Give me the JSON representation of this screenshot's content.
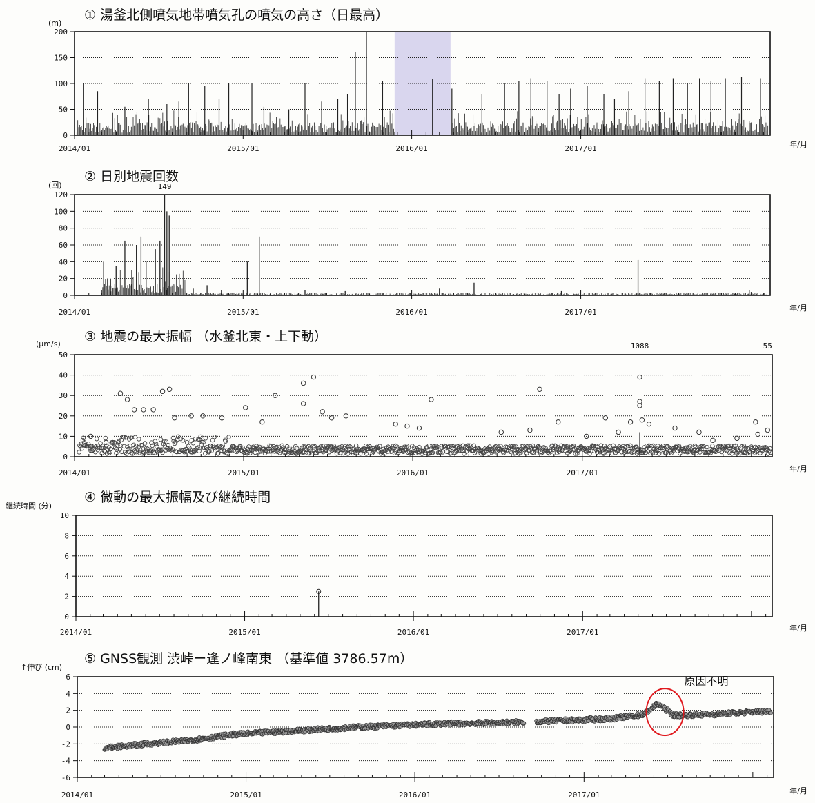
{
  "x_axis_unit": "年/月",
  "colors": {
    "gap_fill": "#d9d6ee",
    "ink": "#222222",
    "annotation": "#e0191e",
    "marker_fill": "#9a9a9a"
  },
  "chart_data": [
    {
      "type": "bar",
      "title": "① 湯釜北側噴気地帯噴気孔の噴気の高さ（日最高）",
      "ylabel": "(m)",
      "ylim": [
        0,
        200
      ],
      "yticks": [
        "200",
        "150",
        "100",
        "50",
        "0"
      ],
      "xlim": [
        "2014-01-01",
        "2018-02-15"
      ],
      "xticks": [
        "2014/01",
        "2015/01",
        "2016/01",
        "2017/01"
      ],
      "xunit": "年/月",
      "no_data_period": [
        "2015-11-25",
        "2016-03-25"
      ],
      "spikes": [
        {
          "date": "2014-01-20",
          "value": 100
        },
        {
          "date": "2014-02-20",
          "value": 85
        },
        {
          "date": "2014-04-20",
          "value": 55
        },
        {
          "date": "2014-06-10",
          "value": 70
        },
        {
          "date": "2014-07-20",
          "value": 60
        },
        {
          "date": "2014-08-15",
          "value": 65
        },
        {
          "date": "2014-09-05",
          "value": 100
        },
        {
          "date": "2014-10-10",
          "value": 95
        },
        {
          "date": "2014-11-10",
          "value": 70
        },
        {
          "date": "2014-12-01",
          "value": 100
        },
        {
          "date": "2015-01-20",
          "value": 100
        },
        {
          "date": "2015-02-15",
          "value": 55
        },
        {
          "date": "2015-04-10",
          "value": 50
        },
        {
          "date": "2015-05-15",
          "value": 100
        },
        {
          "date": "2015-06-20",
          "value": 65
        },
        {
          "date": "2015-07-25",
          "value": 70
        },
        {
          "date": "2015-08-15",
          "value": 80
        },
        {
          "date": "2015-09-01",
          "value": 160
        },
        {
          "date": "2015-09-25",
          "value": 200
        },
        {
          "date": "2015-10-30",
          "value": 105
        },
        {
          "date": "2016-02-15",
          "value": 108
        },
        {
          "date": "2016-03-28",
          "value": 90
        },
        {
          "date": "2016-06-01",
          "value": 80
        },
        {
          "date": "2016-07-20",
          "value": 100
        },
        {
          "date": "2016-08-20",
          "value": 105
        },
        {
          "date": "2016-09-15",
          "value": 110
        },
        {
          "date": "2016-10-20",
          "value": 105
        },
        {
          "date": "2016-11-15",
          "value": 80
        },
        {
          "date": "2016-12-10",
          "value": 90
        },
        {
          "date": "2017-01-15",
          "value": 95
        },
        {
          "date": "2017-02-20",
          "value": 80
        },
        {
          "date": "2017-03-15",
          "value": 70
        },
        {
          "date": "2017-04-15",
          "value": 85
        },
        {
          "date": "2017-05-20",
          "value": 110
        },
        {
          "date": "2017-06-20",
          "value": 105
        },
        {
          "date": "2017-07-20",
          "value": 110
        },
        {
          "date": "2017-08-20",
          "value": 100
        },
        {
          "date": "2017-09-15",
          "value": 110
        },
        {
          "date": "2017-10-10",
          "value": 105
        },
        {
          "date": "2017-11-10",
          "value": 110
        },
        {
          "date": "2017-12-15",
          "value": 112
        },
        {
          "date": "2018-01-25",
          "value": 110
        }
      ]
    },
    {
      "type": "bar",
      "title": "② 日別地震回数",
      "ylabel": "(回)",
      "ylim": [
        0,
        120
      ],
      "yticks": [
        "120",
        "100",
        "80",
        "60",
        "40",
        "20",
        "0"
      ],
      "xlim": [
        "2014-01-01",
        "2018-02-15"
      ],
      "xticks": [
        "2014/01",
        "2015/01",
        "2016/01",
        "2017/01"
      ],
      "xunit": "年/月",
      "over_label": "149",
      "spikes": [
        {
          "date": "2014-03-05",
          "value": 40
        },
        {
          "date": "2014-03-20",
          "value": 20
        },
        {
          "date": "2014-04-01",
          "value": 35
        },
        {
          "date": "2014-04-20",
          "value": 65
        },
        {
          "date": "2014-05-05",
          "value": 30
        },
        {
          "date": "2014-05-15",
          "value": 60
        },
        {
          "date": "2014-05-25",
          "value": 70
        },
        {
          "date": "2014-06-05",
          "value": 40
        },
        {
          "date": "2014-06-25",
          "value": 55
        },
        {
          "date": "2014-07-05",
          "value": 65
        },
        {
          "date": "2014-07-15",
          "value": 120
        },
        {
          "date": "2014-07-20",
          "value": 100
        },
        {
          "date": "2014-07-25",
          "value": 95
        },
        {
          "date": "2014-08-10",
          "value": 25
        },
        {
          "date": "2014-09-15",
          "value": 8
        },
        {
          "date": "2014-10-15",
          "value": 12
        },
        {
          "date": "2014-11-15",
          "value": 6
        },
        {
          "date": "2015-01-10",
          "value": 40
        },
        {
          "date": "2015-02-05",
          "value": 70
        },
        {
          "date": "2015-05-15",
          "value": 6
        },
        {
          "date": "2015-08-10",
          "value": 5
        },
        {
          "date": "2016-03-01",
          "value": 8
        },
        {
          "date": "2016-05-15",
          "value": 15
        },
        {
          "date": "2016-11-20",
          "value": 5
        },
        {
          "date": "2017-05-05",
          "value": 42
        },
        {
          "date": "2018-01-05",
          "value": 4
        }
      ]
    },
    {
      "type": "scatter",
      "title": "③ 地震の最大振幅 （水釜北東・上下動）",
      "ylabel": "(μm/s)",
      "ylim": [
        0,
        50
      ],
      "yticks": [
        "50",
        "40",
        "30",
        "20",
        "10",
        "0"
      ],
      "xlim": [
        "2014-01-01",
        "2018-02-15"
      ],
      "xticks": [
        "2014/01",
        "2015/01",
        "2016/01",
        "2017/01"
      ],
      "xunit": "年/月",
      "over_labels": [
        {
          "date": "2017-05-05",
          "text": "1088"
        },
        {
          "date": "2018-02-05",
          "text": "55"
        }
      ],
      "points": [
        {
          "date": "2014-02-05",
          "value": 10
        },
        {
          "date": "2014-03-10",
          "value": 7
        },
        {
          "date": "2014-04-10",
          "value": 31
        },
        {
          "date": "2014-04-25",
          "value": 28
        },
        {
          "date": "2014-05-10",
          "value": 23
        },
        {
          "date": "2014-05-30",
          "value": 23
        },
        {
          "date": "2014-06-20",
          "value": 23
        },
        {
          "date": "2014-07-10",
          "value": 32
        },
        {
          "date": "2014-07-25",
          "value": 33
        },
        {
          "date": "2014-08-05",
          "value": 19
        },
        {
          "date": "2014-09-10",
          "value": 20
        },
        {
          "date": "2014-10-05",
          "value": 20
        },
        {
          "date": "2014-11-15",
          "value": 19
        },
        {
          "date": "2015-01-05",
          "value": 24
        },
        {
          "date": "2015-02-10",
          "value": 17
        },
        {
          "date": "2015-03-10",
          "value": 30
        },
        {
          "date": "2015-05-10",
          "value": 36
        },
        {
          "date": "2015-05-10",
          "value": 26
        },
        {
          "date": "2015-06-01",
          "value": 39
        },
        {
          "date": "2015-06-20",
          "value": 22
        },
        {
          "date": "2015-07-10",
          "value": 19
        },
        {
          "date": "2015-08-10",
          "value": 20
        },
        {
          "date": "2015-11-25",
          "value": 16
        },
        {
          "date": "2015-12-20",
          "value": 15
        },
        {
          "date": "2016-01-15",
          "value": 14
        },
        {
          "date": "2016-02-10",
          "value": 28
        },
        {
          "date": "2016-07-10",
          "value": 12
        },
        {
          "date": "2016-09-10",
          "value": 13
        },
        {
          "date": "2016-10-01",
          "value": 33
        },
        {
          "date": "2016-11-10",
          "value": 17
        },
        {
          "date": "2017-01-10",
          "value": 10
        },
        {
          "date": "2017-02-20",
          "value": 19
        },
        {
          "date": "2017-03-20",
          "value": 12
        },
        {
          "date": "2017-04-15",
          "value": 17
        },
        {
          "date": "2017-05-05",
          "value": 39
        },
        {
          "date": "2017-05-05",
          "value": 27
        },
        {
          "date": "2017-05-05",
          "value": 25
        },
        {
          "date": "2017-05-10",
          "value": 18
        },
        {
          "date": "2017-05-25",
          "value": 16
        },
        {
          "date": "2017-07-20",
          "value": 14
        },
        {
          "date": "2017-09-10",
          "value": 12
        },
        {
          "date": "2017-10-10",
          "value": 8
        },
        {
          "date": "2017-12-01",
          "value": 9
        },
        {
          "date": "2018-01-10",
          "value": 17
        },
        {
          "date": "2018-01-15",
          "value": 11
        },
        {
          "date": "2018-02-05",
          "value": 13
        }
      ]
    },
    {
      "type": "bar",
      "title": "④ 微動の最大振幅及び継続時間",
      "ylabel": "継続時間 (分)",
      "ylim": [
        0,
        10
      ],
      "yticks": [
        "10",
        "8",
        "6",
        "4",
        "2",
        "0"
      ],
      "xlim": [
        "2014-01-01",
        "2018-02-15"
      ],
      "xticks": [
        "2014/01",
        "2015/01",
        "2016/01",
        "2017/01"
      ],
      "xunit": "年/月",
      "spikes": [
        {
          "date": "2015-06-10",
          "value": 2.5
        }
      ]
    },
    {
      "type": "scatter",
      "title": "⑤ GNSS観測 渋峠ー逢ノ峰南東 （基準値 3786.57m）",
      "ylabel": "↑伸び (cm)",
      "ylim": [
        -6,
        6
      ],
      "yticks": [
        "6",
        "4",
        "2",
        "0",
        "-2",
        "-4",
        "-6"
      ],
      "xlim": [
        "2014-01-01",
        "2018-02-15"
      ],
      "xticks": [
        "2014/01",
        "2015/01",
        "2016/01",
        "2017/01"
      ],
      "xunit": "年/月",
      "annotation": "原因不明",
      "annotation_date": "2017-06-25",
      "annotation_value": 1.8,
      "series": [
        {
          "date": "2014-03-01",
          "value": -2.5
        },
        {
          "date": "2014-06-01",
          "value": -2.0
        },
        {
          "date": "2014-09-01",
          "value": -1.6
        },
        {
          "date": "2014-12-01",
          "value": -0.9
        },
        {
          "date": "2015-03-01",
          "value": -0.6
        },
        {
          "date": "2015-06-01",
          "value": -0.3
        },
        {
          "date": "2015-09-01",
          "value": 0.0
        },
        {
          "date": "2015-12-01",
          "value": 0.2
        },
        {
          "date": "2016-03-01",
          "value": 0.4
        },
        {
          "date": "2016-06-01",
          "value": 0.5
        },
        {
          "date": "2016-09-01",
          "value": 0.6
        },
        {
          "date": "2016-12-01",
          "value": 0.8
        },
        {
          "date": "2017-03-01",
          "value": 1.0
        },
        {
          "date": "2017-05-10",
          "value": 1.5
        },
        {
          "date": "2017-06-10",
          "value": 2.8
        },
        {
          "date": "2017-07-15",
          "value": 1.4
        },
        {
          "date": "2017-10-01",
          "value": 1.5
        },
        {
          "date": "2018-01-01",
          "value": 1.8
        },
        {
          "date": "2018-02-10",
          "value": 1.9
        }
      ],
      "gaps": [
        [
          "2016-08-25",
          "2016-09-20"
        ]
      ]
    }
  ]
}
